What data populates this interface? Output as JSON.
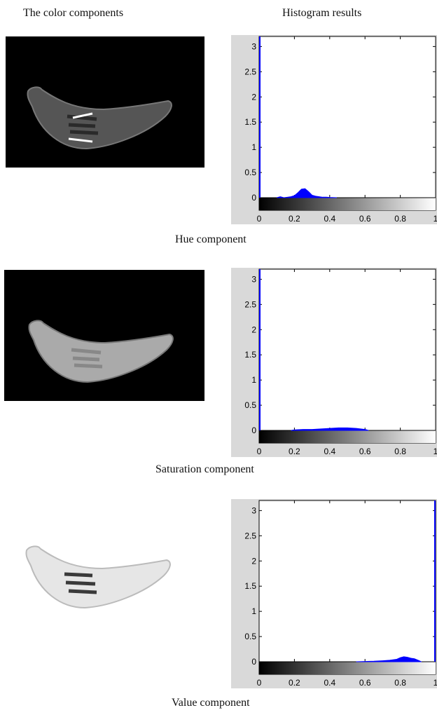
{
  "headers": {
    "left": "The color  components",
    "right": "Histogram  results"
  },
  "colors": {
    "histogram": "#0000ff",
    "axis_box": "#d9d9d9"
  },
  "panels": [
    {
      "caption": "Hue component",
      "image": {
        "background": "#000000",
        "banana_fill": "#555555",
        "object": "banana"
      },
      "chart_data": {
        "type": "area",
        "xlim": [
          0,
          1
        ],
        "ylim": [
          -0.25,
          3.2
        ],
        "xticks": [
          0,
          0.2,
          0.4,
          0.6,
          0.8,
          1
        ],
        "xtick_labels": [
          "0",
          "0.2",
          "0.4",
          "0.6",
          "0.8",
          "1"
        ],
        "yticks": [
          0,
          0.5,
          1,
          1.5,
          2,
          2.5,
          3
        ],
        "ytick_labels": [
          "0",
          "0.5",
          "1",
          "1.5",
          "2",
          "2.5",
          "3"
        ],
        "colorbar": "grayscale 0 to 1",
        "spike_x": 0,
        "spike_y": 3.2,
        "x": [
          0.1,
          0.12,
          0.14,
          0.16,
          0.18,
          0.2,
          0.22,
          0.24,
          0.26,
          0.28,
          0.3,
          0.32,
          0.34,
          0.36,
          0.38,
          0.4,
          0.44
        ],
        "y": [
          0.0,
          0.02,
          0.0,
          0.01,
          0.02,
          0.04,
          0.1,
          0.17,
          0.18,
          0.12,
          0.05,
          0.03,
          0.02,
          0.01,
          0.01,
          0.005,
          0.0
        ]
      }
    },
    {
      "caption": "Saturation component",
      "image": {
        "background": "#000000",
        "banana_fill": "#aaaaaa",
        "object": "banana"
      },
      "chart_data": {
        "type": "area",
        "xlim": [
          0,
          1
        ],
        "ylim": [
          -0.25,
          3.2
        ],
        "xticks": [
          0,
          0.2,
          0.4,
          0.6,
          0.8,
          1
        ],
        "xtick_labels": [
          "0",
          "0.2",
          "0.4",
          "0.6",
          "0.8",
          "1"
        ],
        "yticks": [
          0,
          0.5,
          1,
          1.5,
          2,
          2.5,
          3
        ],
        "ytick_labels": [
          "0",
          "0.5",
          "1",
          "1.5",
          "2",
          "2.5",
          "3"
        ],
        "colorbar": "grayscale 0 to 1",
        "spike_x": 0,
        "spike_y": 3.2,
        "x": [
          0.18,
          0.2,
          0.25,
          0.3,
          0.35,
          0.4,
          0.45,
          0.5,
          0.55,
          0.6,
          0.62
        ],
        "y": [
          0.0,
          0.01,
          0.02,
          0.02,
          0.03,
          0.04,
          0.05,
          0.05,
          0.04,
          0.02,
          0.0
        ]
      }
    },
    {
      "caption": "Value component",
      "image": {
        "background": "#ffffff",
        "banana_fill": "#e6e6e6",
        "object": "banana"
      },
      "chart_data": {
        "type": "area",
        "xlim": [
          0,
          1
        ],
        "ylim": [
          -0.25,
          3.2
        ],
        "xticks": [
          0,
          0.2,
          0.4,
          0.6,
          0.8,
          1
        ],
        "xtick_labels": [
          "0",
          "0.2",
          "0.4",
          "0.6",
          "0.8",
          "1"
        ],
        "yticks": [
          0,
          0.5,
          1,
          1.5,
          2,
          2.5,
          3
        ],
        "ytick_labels": [
          "0",
          "0.5",
          "1",
          "1.5",
          "2",
          "2.5",
          "3"
        ],
        "colorbar": "grayscale 0 to 1",
        "spike_x": 1,
        "spike_y": 3.2,
        "x": [
          0.55,
          0.6,
          0.65,
          0.7,
          0.74,
          0.78,
          0.8,
          0.82,
          0.84,
          0.86,
          0.88,
          0.9,
          0.92
        ],
        "y": [
          0.0,
          0.005,
          0.01,
          0.02,
          0.03,
          0.05,
          0.08,
          0.1,
          0.09,
          0.07,
          0.06,
          0.03,
          0.0
        ]
      }
    }
  ]
}
